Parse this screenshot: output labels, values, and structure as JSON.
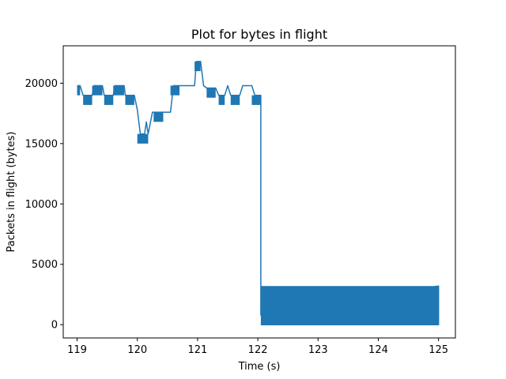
{
  "chart_data": {
    "type": "line",
    "title": "Plot for bytes in flight",
    "xlabel": "Time (s)",
    "ylabel": "Packets in flight (bytes)",
    "xlim": [
      118.77,
      125.28
    ],
    "ylim": [
      -1100,
      23100
    ],
    "xticks": [
      119,
      120,
      121,
      122,
      123,
      124,
      125
    ],
    "yticks": [
      0,
      5000,
      10000,
      15000,
      20000
    ],
    "grid": false,
    "color": "#1f77b4",
    "series": [
      {
        "bands": [
          {
            "x": [
              119.0,
              119.05
            ],
            "low": 19000,
            "high": 19800
          },
          {
            "x": [
              119.1,
              119.25
            ],
            "low": 18200,
            "high": 19000
          },
          {
            "x": [
              119.25,
              119.42
            ],
            "low": 19000,
            "high": 19800
          },
          {
            "x": [
              119.45,
              119.6
            ],
            "low": 18200,
            "high": 19000
          },
          {
            "x": [
              119.6,
              119.78
            ],
            "low": 19000,
            "high": 19800
          },
          {
            "x": [
              119.8,
              119.95
            ],
            "low": 18200,
            "high": 19000
          },
          {
            "x": [
              120.0,
              120.18
            ],
            "low": 15000,
            "high": 15800
          },
          {
            "x": [
              120.27,
              120.43
            ],
            "low": 16800,
            "high": 17600
          },
          {
            "x": [
              120.55,
              120.7
            ],
            "low": 19000,
            "high": 19800
          },
          {
            "x": [
              120.95,
              121.05
            ],
            "low": 21000,
            "high": 21800
          },
          {
            "x": [
              121.15,
              121.3
            ],
            "low": 18800,
            "high": 19600
          },
          {
            "x": [
              121.35,
              121.45
            ],
            "low": 18200,
            "high": 19000
          },
          {
            "x": [
              121.55,
              121.7
            ],
            "low": 18200,
            "high": 19000
          },
          {
            "x": [
              121.9,
              122.05
            ],
            "low": 18200,
            "high": 19000
          },
          {
            "x": [
              122.05,
              125.0
            ],
            "low": 0,
            "high": 3200
          }
        ],
        "outline": [
          [
            119.0,
            19800
          ],
          [
            119.05,
            19800
          ],
          [
            119.1,
            19000
          ],
          [
            119.25,
            19000
          ],
          [
            119.28,
            19800
          ],
          [
            119.42,
            19800
          ],
          [
            119.45,
            19000
          ],
          [
            119.6,
            19000
          ],
          [
            119.63,
            19800
          ],
          [
            119.78,
            19800
          ],
          [
            119.8,
            19000
          ],
          [
            119.95,
            19000
          ],
          [
            120.0,
            17800
          ],
          [
            120.05,
            15800
          ],
          [
            120.12,
            15800
          ],
          [
            120.15,
            16800
          ],
          [
            120.18,
            15800
          ],
          [
            120.25,
            17600
          ],
          [
            120.55,
            17600
          ],
          [
            120.6,
            19800
          ],
          [
            120.95,
            19800
          ],
          [
            120.98,
            21800
          ],
          [
            121.05,
            21800
          ],
          [
            121.1,
            19800
          ],
          [
            121.15,
            19600
          ],
          [
            121.3,
            19600
          ],
          [
            121.35,
            19000
          ],
          [
            121.45,
            19000
          ],
          [
            121.5,
            19800
          ],
          [
            121.55,
            19000
          ],
          [
            121.7,
            19000
          ],
          [
            121.75,
            19800
          ],
          [
            121.9,
            19800
          ],
          [
            121.95,
            19000
          ],
          [
            122.05,
            19000
          ],
          [
            122.05,
            800
          ],
          [
            122.5,
            1200
          ],
          [
            123.0,
            1500
          ],
          [
            123.5,
            1900
          ],
          [
            124.0,
            2300
          ],
          [
            124.5,
            2800
          ],
          [
            125.0,
            3200
          ],
          [
            125.0,
            0
          ],
          [
            122.05,
            0
          ]
        ]
      }
    ]
  }
}
